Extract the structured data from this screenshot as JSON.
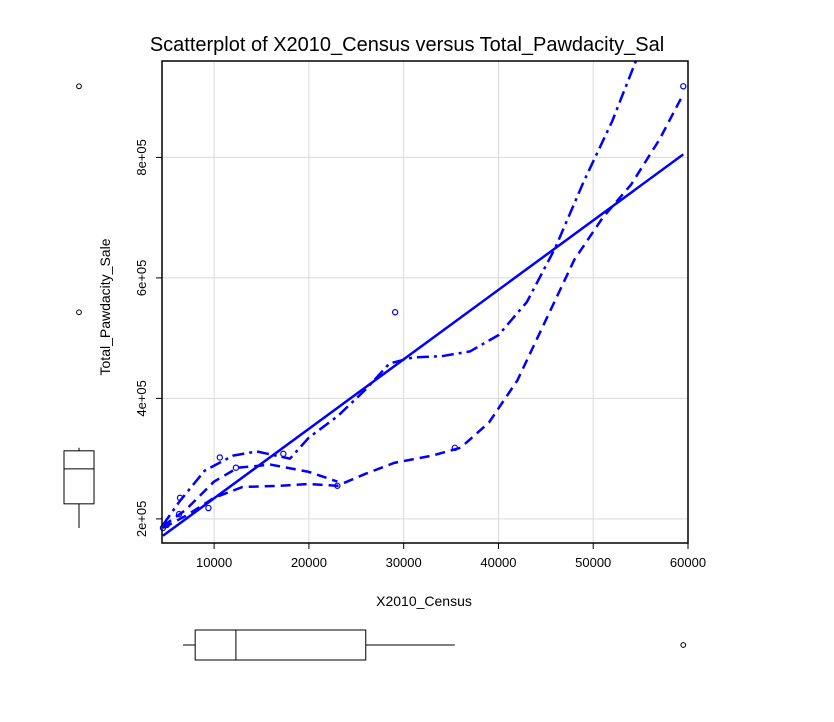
{
  "chart_data": {
    "type": "scatter",
    "title": "Scatterplot of X2010_Census versus Total_Pawdacity_Sal",
    "xlabel": "X2010_Census",
    "ylabel": "Total_Pawdacity_Sale",
    "xlim": [
      4500,
      60000
    ],
    "ylim": [
      160000,
      960000
    ],
    "x_ticks": [
      10000,
      20000,
      30000,
      40000,
      50000,
      60000
    ],
    "x_tick_labels": [
      "10000",
      "20000",
      "30000",
      "40000",
      "50000",
      "60000"
    ],
    "y_ticks": [
      200000,
      400000,
      600000,
      800000
    ],
    "y_tick_labels": [
      "2e+05",
      "4e+05",
      "6e+05",
      "8e+05"
    ],
    "grid": true,
    "legend": "none",
    "colors": {
      "series": "#0000ff",
      "axis": "#000000",
      "grid": "#d9d9d9"
    },
    "points": [
      {
        "x": 4600,
        "y": 185000
      },
      {
        "x": 5000,
        "y": 190000
      },
      {
        "x": 6300,
        "y": 208000
      },
      {
        "x": 6400,
        "y": 235000
      },
      {
        "x": 9400,
        "y": 218000
      },
      {
        "x": 10600,
        "y": 302000
      },
      {
        "x": 12300,
        "y": 285000
      },
      {
        "x": 17300,
        "y": 308000
      },
      {
        "x": 23000,
        "y": 255000
      },
      {
        "x": 29100,
        "y": 543000
      },
      {
        "x": 35400,
        "y": 318000
      },
      {
        "x": 59500,
        "y": 918000
      }
    ],
    "regression_line": {
      "style": "solid",
      "points": [
        {
          "x": 4600,
          "y": 172000
        },
        {
          "x": 59500,
          "y": 805000
        }
      ]
    },
    "smooth_lines": [
      {
        "style": "dashed",
        "points": [
          {
            "x": 4600,
            "y": 185000
          },
          {
            "x": 7000,
            "y": 205000
          },
          {
            "x": 10000,
            "y": 235000
          },
          {
            "x": 13000,
            "y": 253000
          },
          {
            "x": 17000,
            "y": 255000
          },
          {
            "x": 20000,
            "y": 258000
          },
          {
            "x": 23000,
            "y": 255000
          },
          {
            "x": 26000,
            "y": 275000
          },
          {
            "x": 29000,
            "y": 293000
          },
          {
            "x": 33000,
            "y": 305000
          },
          {
            "x": 36000,
            "y": 318000
          },
          {
            "x": 39000,
            "y": 360000
          },
          {
            "x": 42000,
            "y": 430000
          },
          {
            "x": 45000,
            "y": 530000
          },
          {
            "x": 48000,
            "y": 630000
          },
          {
            "x": 51000,
            "y": 700000
          },
          {
            "x": 54000,
            "y": 755000
          },
          {
            "x": 57000,
            "y": 830000
          },
          {
            "x": 59500,
            "y": 905000
          }
        ]
      },
      {
        "style": "dashed",
        "points": [
          {
            "x": 4600,
            "y": 188000
          },
          {
            "x": 7000,
            "y": 215000
          },
          {
            "x": 10000,
            "y": 262000
          },
          {
            "x": 12500,
            "y": 285000
          },
          {
            "x": 16000,
            "y": 290000
          },
          {
            "x": 20000,
            "y": 278000
          },
          {
            "x": 23000,
            "y": 262000
          }
        ]
      },
      {
        "style": "dashdot",
        "points": [
          {
            "x": 4600,
            "y": 190000
          },
          {
            "x": 6400,
            "y": 230000
          },
          {
            "x": 9000,
            "y": 280000
          },
          {
            "x": 12000,
            "y": 305000
          },
          {
            "x": 14500,
            "y": 312000
          },
          {
            "x": 18000,
            "y": 300000
          },
          {
            "x": 20000,
            "y": 335000
          },
          {
            "x": 23000,
            "y": 370000
          },
          {
            "x": 26000,
            "y": 415000
          },
          {
            "x": 28500,
            "y": 458000
          },
          {
            "x": 31000,
            "y": 468000
          },
          {
            "x": 34000,
            "y": 470000
          },
          {
            "x": 37000,
            "y": 478000
          },
          {
            "x": 40000,
            "y": 505000
          },
          {
            "x": 43000,
            "y": 560000
          },
          {
            "x": 46000,
            "y": 650000
          },
          {
            "x": 49000,
            "y": 760000
          },
          {
            "x": 52000,
            "y": 860000
          },
          {
            "x": 54500,
            "y": 960000
          }
        ]
      }
    ],
    "y_boxplot": {
      "whisker_low": 185000,
      "q1": 225000,
      "median": 283000,
      "q3": 313000,
      "whisker_high": 318000,
      "outliers": [
        543000,
        918000
      ]
    },
    "x_boxplot": {
      "whisker_low": 4600,
      "q1": 8000,
      "median": 12300,
      "q3": 26000,
      "whisker_high": 35400,
      "outliers": [
        59500
      ]
    }
  }
}
